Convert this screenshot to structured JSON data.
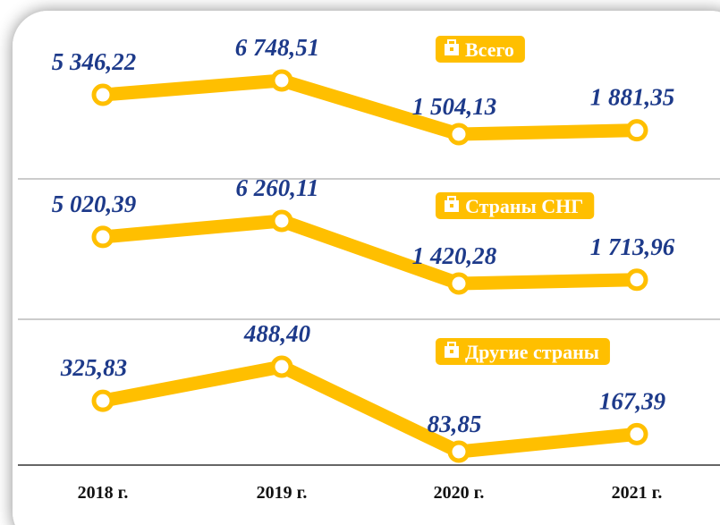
{
  "chart_data": {
    "type": "line",
    "categories": [
      "2018 г.",
      "2019 г.",
      "2020 г.",
      "2021 г."
    ],
    "series": [
      {
        "name": "Всего",
        "color": "#ffbf00",
        "values": [
          5346.22,
          6748.51,
          1504.13,
          1881.35
        ],
        "value_labels": [
          "5 346,22",
          "6 748,51",
          "1 504,13",
          "1 881,35"
        ]
      },
      {
        "name": "Страны СНГ",
        "color": "#ffbf00",
        "values": [
          5020.39,
          6260.11,
          1420.28,
          1713.96
        ],
        "value_labels": [
          "5 020,39",
          "6 260,11",
          "1 420,28",
          "1 713,96"
        ]
      },
      {
        "name": "Другие страны",
        "color": "#ffbf00",
        "values": [
          325.83,
          488.4,
          83.85,
          167.39
        ],
        "value_labels": [
          "325,83",
          "488,40",
          "83,85",
          "167,39"
        ]
      }
    ]
  }
}
